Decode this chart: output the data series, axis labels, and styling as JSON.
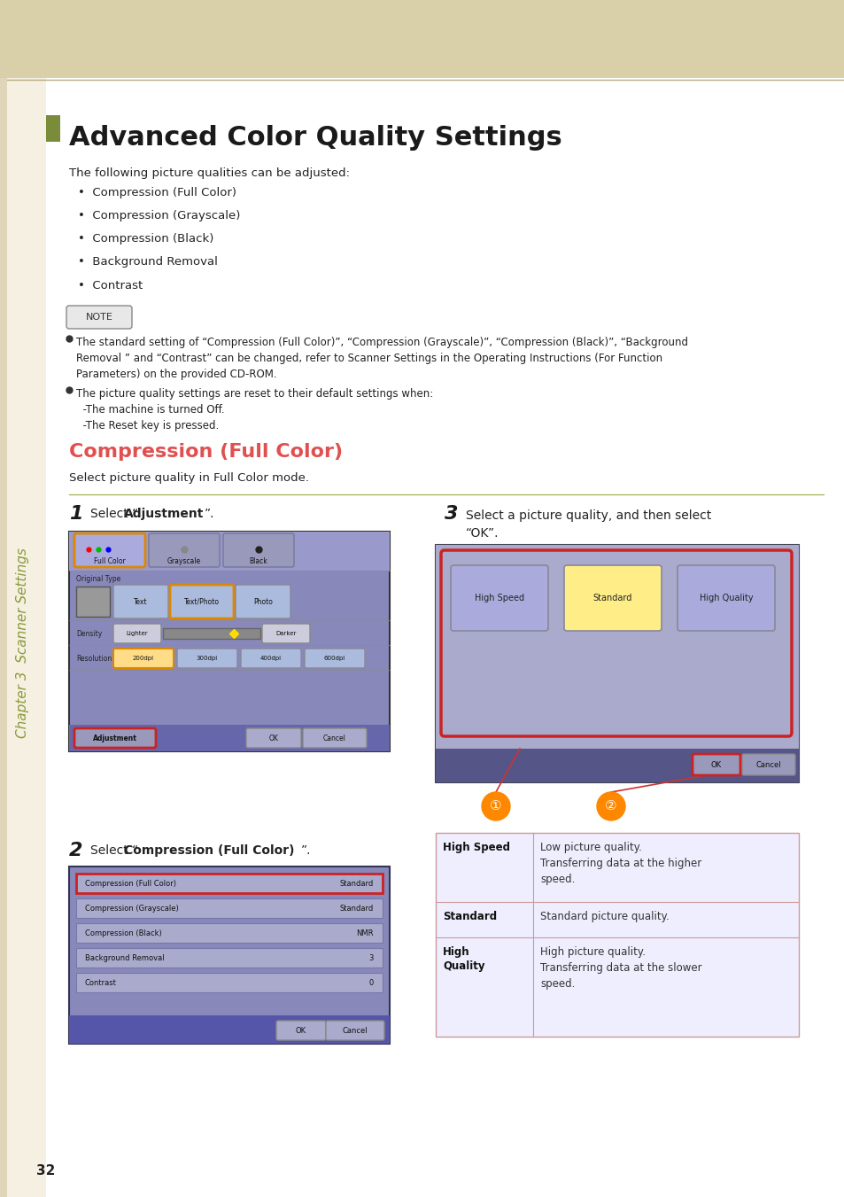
{
  "page_bg": "#ffffff",
  "header_bg": "#d9cfa8",
  "sidebar_bg": "#f5f0e2",
  "sidebar_color": "#8a9a3a",
  "title_accent_color": "#7a8c3a",
  "title_text": "Advanced Color Quality Settings",
  "title_color": "#1a1a1a",
  "section_title": "Compression (Full Color)",
  "section_title_color": "#e05050",
  "footer_line_color": "#9aaa4a",
  "page_num": "32",
  "screen1_bg": "#8888bb",
  "screen1_top": "#9999cc",
  "screen1_bot": "#6666aa",
  "screen2_bg": "#8888bb",
  "screen2_bot": "#5555aa",
  "screen3_bg": "#9999cc",
  "screen3_bot": "#555588",
  "table_border": "#cc99aa",
  "table_bg": "#eeeeff",
  "qual_selected_color": "#ffee88",
  "qual_normal_color": "#aaaadd",
  "orange_circle": "#ff8800"
}
